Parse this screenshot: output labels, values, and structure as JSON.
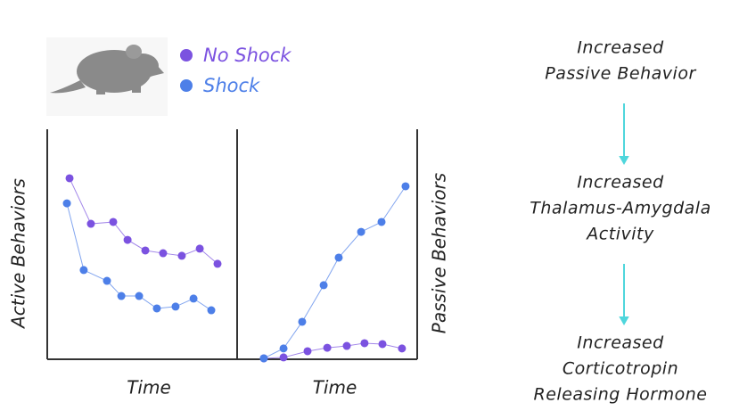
{
  "chart_data": [
    {
      "type": "line",
      "xlabel": "Time",
      "ylabel": "Active Behaviors",
      "xlim": [
        0,
        100
      ],
      "ylim": [
        0,
        100
      ],
      "series": [
        {
          "name": "No Shock",
          "color": "#7b52e0",
          "x": [
            11.8,
            23.1,
            34.9,
            42.5,
            51.9,
            61.3,
            71.2,
            80.7,
            90.1
          ],
          "values": [
            78.7,
            58.9,
            59.7,
            51.9,
            47.3,
            46.1,
            45.0,
            48.1,
            41.5
          ]
        },
        {
          "name": "Shock",
          "color": "#4d7fe8",
          "x": [
            10.4,
            19.3,
            31.6,
            39.2,
            48.6,
            58.0,
            67.9,
            77.4,
            86.8
          ],
          "values": [
            67.8,
            38.8,
            34.1,
            27.5,
            27.5,
            22.1,
            22.9,
            26.4,
            21.3
          ]
        }
      ]
    },
    {
      "type": "line",
      "xlabel": "Time",
      "ylabel": "Passive Behaviors",
      "xlim": [
        0,
        100
      ],
      "ylim": [
        0,
        100
      ],
      "series": [
        {
          "color": "#7b52e0",
          "x": [
            14.4,
            25.4,
            38.8,
            49.8,
            60.7,
            70.6,
            80.6,
            91.5
          ],
          "values": [
            0.4,
            0.8,
            3.5,
            5.0,
            5.8,
            7.0,
            6.6,
            4.7
          ]
        },
        {
          "color": "#4d7fe8",
          "x": [
            14.4,
            25.4,
            35.8,
            47.8,
            56.2,
            68.7,
            80.1,
            93.5
          ],
          "values": [
            0.4,
            4.7,
            16.3,
            32.2,
            44.2,
            55.4,
            59.7,
            75.2
          ]
        }
      ]
    }
  ],
  "flow": {
    "steps": [
      {
        "lines": [
          "Increased",
          "Passive Behavior"
        ]
      },
      {
        "lines": [
          "Increased",
          "Thalamus-Amygdala",
          "Activity"
        ]
      },
      {
        "lines": [
          "Increased",
          "Corticotropin",
          "Releasing Hormone"
        ]
      }
    ]
  }
}
